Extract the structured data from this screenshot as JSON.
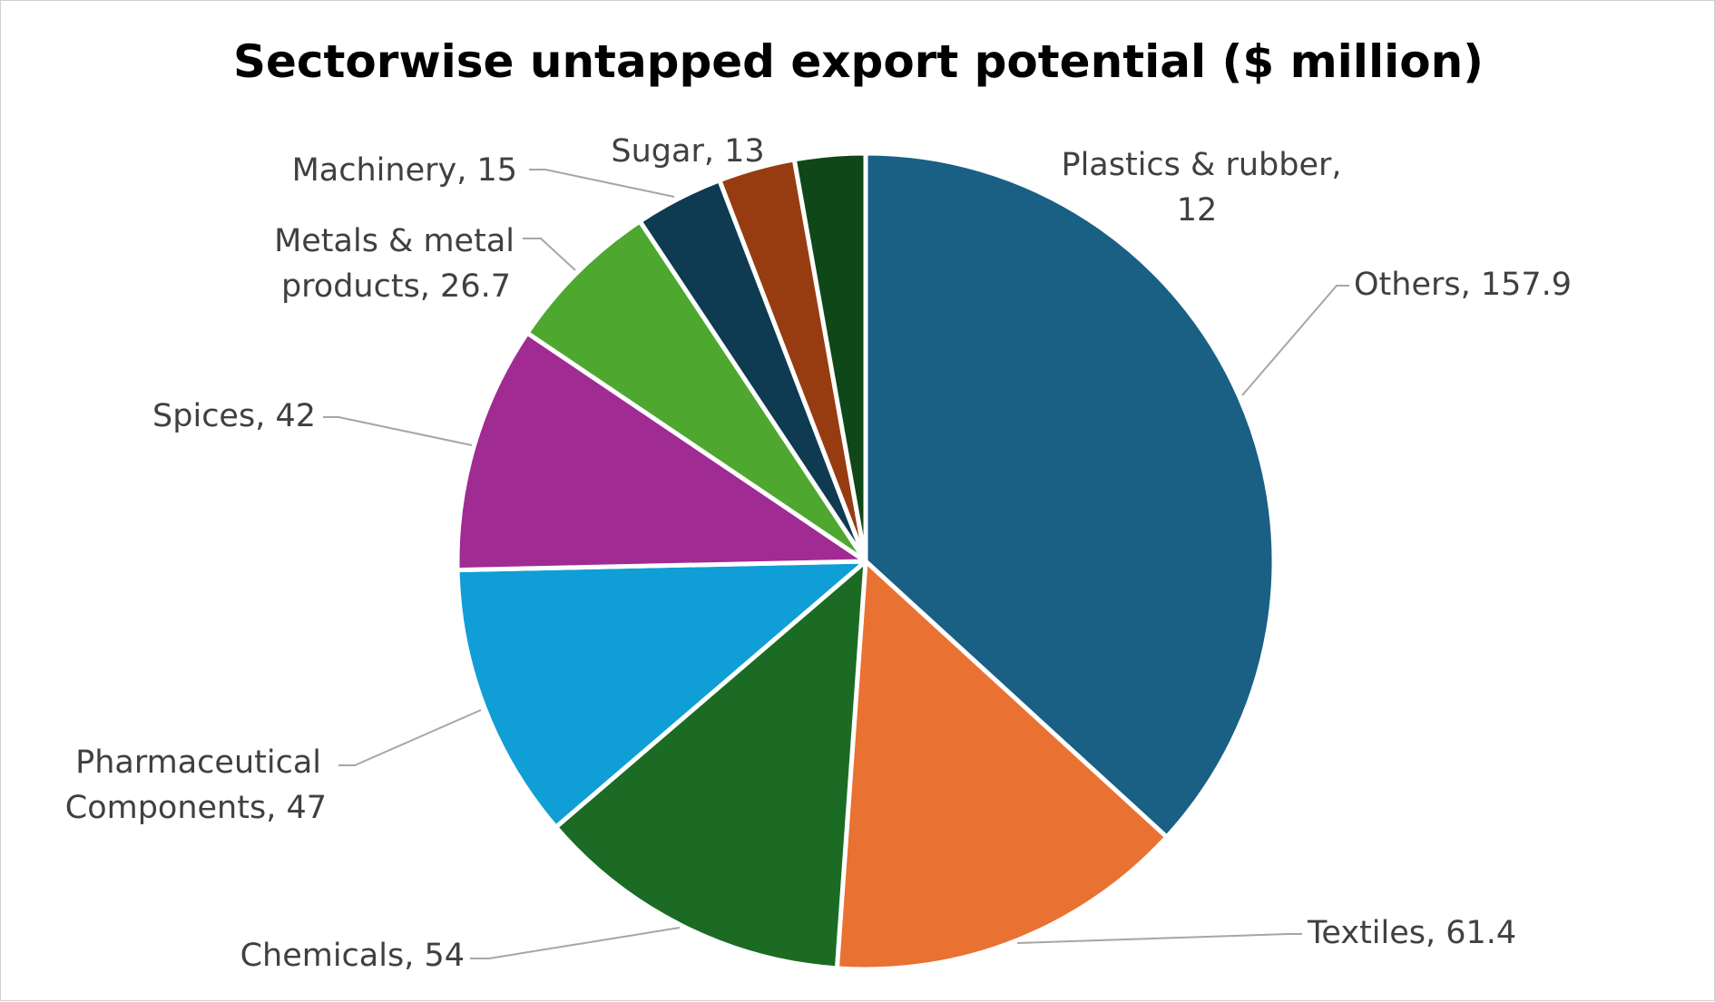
{
  "chart_data": {
    "type": "pie",
    "title": "Sectorwise untapped export potential ($ million)",
    "start_angle_deg": 0,
    "direction": "clockwise",
    "slice_border_color": "#ffffff",
    "slices": [
      {
        "name": "Others",
        "value": 157.9,
        "label": "Others, 157.9",
        "color": "#1a5f84"
      },
      {
        "name": "Textiles",
        "value": 61.4,
        "label": "Textiles, 61.4",
        "color": "#e97132"
      },
      {
        "name": "Chemicals",
        "value": 54,
        "label": "Chemicals, 54",
        "color": "#1b6b24"
      },
      {
        "name": "Pharmaceutical Components",
        "value": 47,
        "label": "Pharmaceutical Components, 47",
        "color": "#0f9ed5"
      },
      {
        "name": "Spices",
        "value": 42,
        "label": "Spices, 42",
        "color": "#a02b93"
      },
      {
        "name": "Metals & metal products",
        "value": 26.7,
        "label": "Metals & metal products, 26.7",
        "color": "#4ea72e"
      },
      {
        "name": "Machinery",
        "value": 15,
        "label": "Machinery, 15",
        "color": "#0e3a52"
      },
      {
        "name": "Sugar",
        "value": 13,
        "label": "Sugar, 13",
        "color": "#963c10"
      },
      {
        "name": "Plastics & rubber",
        "value": 12,
        "label": "Plastics & rubber, 12",
        "color": "#0f4718"
      }
    ]
  }
}
